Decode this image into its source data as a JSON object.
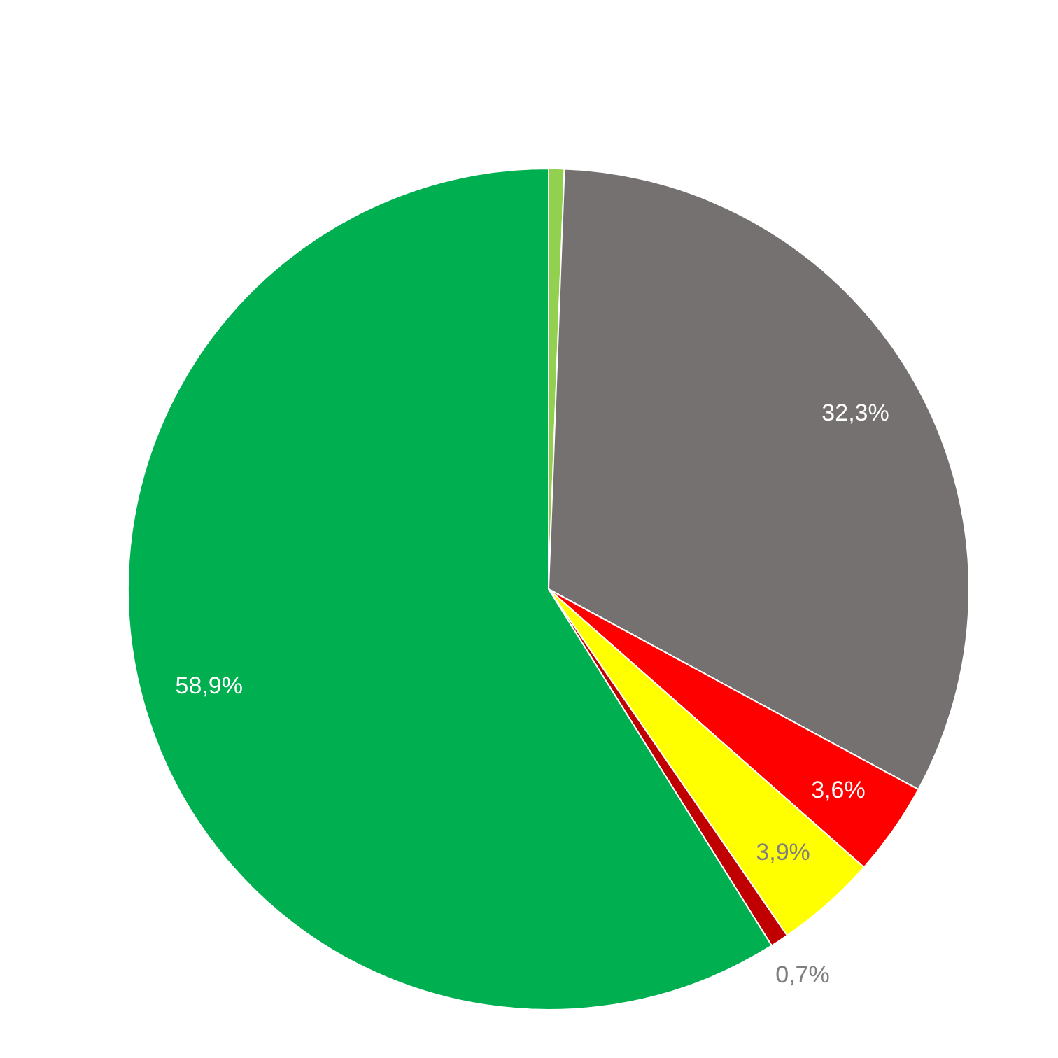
{
  "chart_data": {
    "type": "pie",
    "categories": [
      null,
      null,
      null,
      null,
      null,
      null
    ],
    "values": [
      0.6,
      32.3,
      3.6,
      3.9,
      0.7,
      58.9
    ],
    "colors": [
      "#92d050",
      "#767171",
      "#ff0000",
      "#ffff00",
      "#c00000",
      "#00b050"
    ],
    "value_labels": [
      null,
      "32,3%",
      "3,6%",
      "3,9%",
      "0,7%",
      "58,9%"
    ],
    "legend": false
  }
}
